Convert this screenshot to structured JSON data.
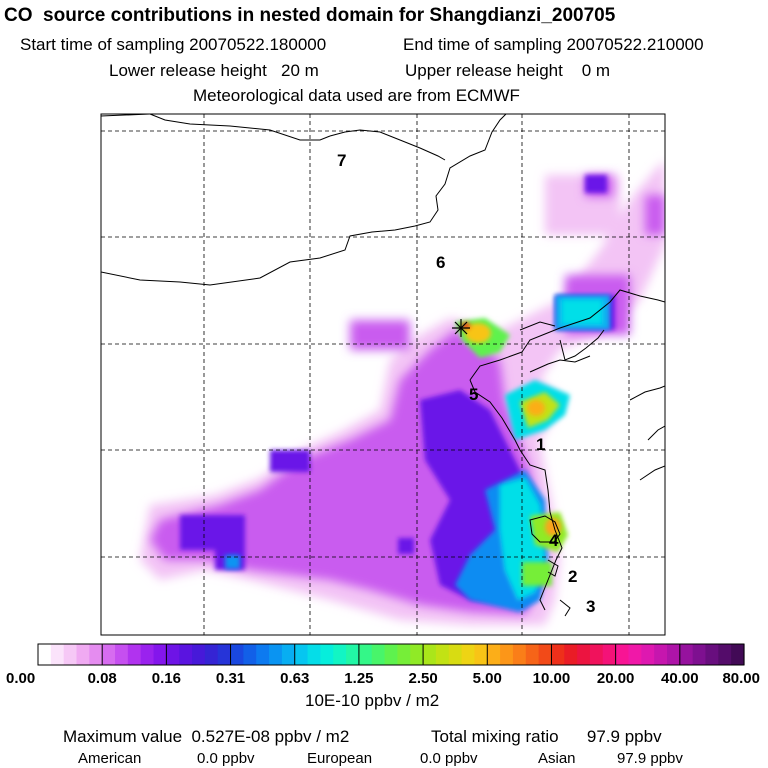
{
  "header": {
    "title": "CO  source contributions in nested domain for Shangdianzi_200705",
    "start_label": "Start time of sampling 20070522.180000",
    "end_label": "End time of sampling 20070522.210000",
    "lower_label": "Lower release height   20 m",
    "upper_label": "Upper release height    0 m",
    "met_label": "Meteorological data used are from ECMWF"
  },
  "map": {
    "region_labels": [
      "7",
      "6",
      "5",
      "1",
      "4",
      "2",
      "3"
    ],
    "receptor_marker": "star-icon"
  },
  "colorbar": {
    "tick_labels": [
      "0.00",
      "0.08",
      "0.16",
      "0.31",
      "0.63",
      "1.25",
      "2.50",
      "5.00",
      "10.00",
      "20.00",
      "40.00",
      "80.00"
    ],
    "unit_label": "10E-10 ppbv / m2",
    "colors": [
      "#ffffff",
      "#fbe3fb",
      "#f6c8f6",
      "#f0aaf2",
      "#e58cf0",
      "#d76cf0",
      "#c64ff0",
      "#b133ef",
      "#9a22ee",
      "#8416ec",
      "#6e14e6",
      "#5a14e0",
      "#4719d9",
      "#3524d4",
      "#2634d8",
      "#1a48e0",
      "#1260e8",
      "#0d7af0",
      "#0a94f2",
      "#08aef2",
      "#06c6f0",
      "#05dde8",
      "#06eedc",
      "#12f5c4",
      "#22f7a6",
      "#34f788",
      "#48f56a",
      "#5ef24e",
      "#76ee38",
      "#90ea26",
      "#aae61a",
      "#c2e214",
      "#d8dc12",
      "#eed414",
      "#f8c416",
      "#fcae18",
      "#fc9618",
      "#fa7e18",
      "#f66418",
      "#f24a18",
      "#ee301a",
      "#ea1c26",
      "#ec1440",
      "#f0125c",
      "#f41278",
      "#f81494",
      "#f018a8",
      "#de18b0",
      "#c616ae",
      "#ae14a8",
      "#96129e",
      "#7e1090",
      "#680e7e",
      "#540c6a",
      "#420a56"
    ]
  },
  "footer": {
    "max_label": "Maximum value  0.527E-08 ppbv / m2",
    "total_label": "Total mixing ratio      97.9 ppbv",
    "american_label": "American",
    "american_value": "0.0 ppbv",
    "european_label": "European",
    "european_value": "0.0 ppbv",
    "asian_label": "Asian",
    "asian_value": "97.9 ppbv"
  }
}
